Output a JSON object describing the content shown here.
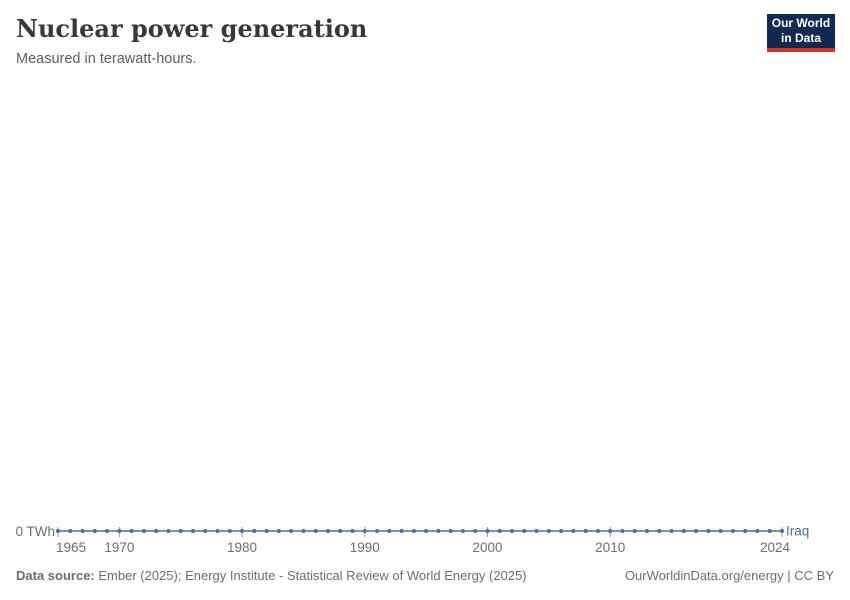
{
  "header": {
    "title": "Nuclear power generation",
    "subtitle": "Measured in terawatt-hours.",
    "logo": {
      "line1": "Our World",
      "line2": "in Data",
      "bg_color": "#102a52",
      "accent_color": "#ce352c"
    }
  },
  "chart_data": {
    "type": "line",
    "title": "Nuclear power generation",
    "subtitle": "Measured in terawatt-hours.",
    "entity": "Iraq",
    "unit": "TWh",
    "y_axis_label": "0 TWh",
    "xlim": [
      1965,
      2024
    ],
    "ylim": [
      0,
      0
    ],
    "grid": false,
    "legend_position": "end-of-line",
    "line_color": "#4c6ca8",
    "tick_color": "#9a9a9a",
    "tick_label_color": "#6e6e6e",
    "x_ticks": [
      1965,
      1970,
      1980,
      1990,
      2000,
      2010,
      2024
    ],
    "x_tick_labels": [
      "1965",
      "1970",
      "1980",
      "1990",
      "2000",
      "2010",
      "2024"
    ],
    "x": [
      1965,
      1966,
      1967,
      1968,
      1969,
      1970,
      1971,
      1972,
      1973,
      1974,
      1975,
      1976,
      1977,
      1978,
      1979,
      1980,
      1981,
      1982,
      1983,
      1984,
      1985,
      1986,
      1987,
      1988,
      1989,
      1990,
      1991,
      1992,
      1993,
      1994,
      1995,
      1996,
      1997,
      1998,
      1999,
      2000,
      2001,
      2002,
      2003,
      2004,
      2005,
      2006,
      2007,
      2008,
      2009,
      2010,
      2011,
      2012,
      2013,
      2014,
      2015,
      2016,
      2017,
      2018,
      2019,
      2020,
      2021,
      2022,
      2023,
      2024
    ],
    "series": [
      {
        "name": "Iraq",
        "values": [
          0,
          0,
          0,
          0,
          0,
          0,
          0,
          0,
          0,
          0,
          0,
          0,
          0,
          0,
          0,
          0,
          0,
          0,
          0,
          0,
          0,
          0,
          0,
          0,
          0,
          0,
          0,
          0,
          0,
          0,
          0,
          0,
          0,
          0,
          0,
          0,
          0,
          0,
          0,
          0,
          0,
          0,
          0,
          0,
          0,
          0,
          0,
          0,
          0,
          0,
          0,
          0,
          0,
          0,
          0,
          0,
          0,
          0,
          0,
          0
        ]
      }
    ]
  },
  "footer": {
    "source_label": "Data source:",
    "source_text": " Ember (2025); Energy Institute - Statistical Review of World Energy (2025)",
    "right_text": "OurWorldinData.org/energy | CC BY"
  }
}
